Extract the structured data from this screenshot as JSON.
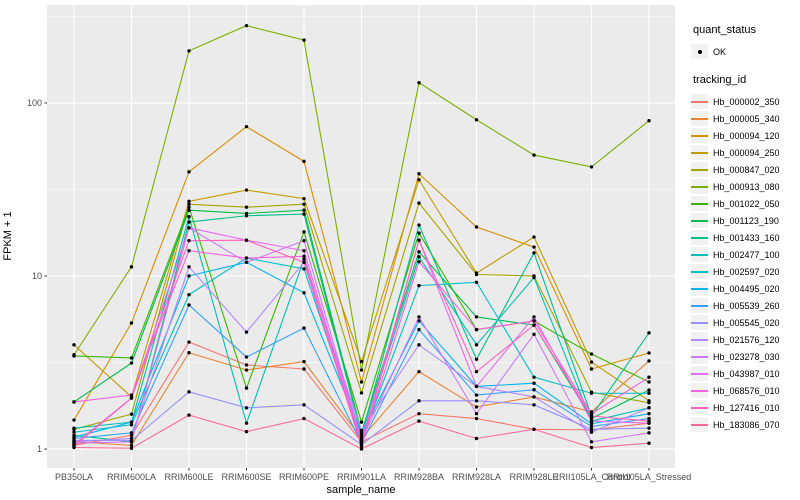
{
  "figure": {
    "x_axis_title": "sample_name",
    "y_axis_title": "FPKM + 1",
    "legend": {
      "quant_status_title": "quant_status",
      "quant_status_items": [
        {
          "label": "OK",
          "marker": "black-point"
        }
      ],
      "tracking_title": "tracking_id"
    },
    "style": {
      "panel_background": "#EBEBEB",
      "grid_color": "#FFFFFF",
      "tick_text_color": "#4D4D4D",
      "point_color": "#000000",
      "legend_key_background": "#F2F2F2"
    }
  },
  "chart_data": {
    "type": "line",
    "title": "",
    "xlabel": "sample_name",
    "ylabel": "FPKM + 1",
    "yscale": "log10",
    "ylim": [
      1,
      350
    ],
    "y_ticks": [
      1,
      10,
      100
    ],
    "y_minor_ticks": [
      3.162,
      31.62,
      316.2
    ],
    "grid": "white major and minor on gray panel",
    "legend_position": "right",
    "marker": "black point at every vertex (quant_status OK)",
    "categories": [
      "PB350LA",
      "RRIM600LA",
      "RRIM600LE",
      "RRIM600SE",
      "RRIM600PE",
      "RRIM901LA",
      "RRIM928BA",
      "RRIM928LA",
      "RRIM928LE",
      "RRII105LA_Control",
      "RRII105LA_Stressed"
    ],
    "series": [
      {
        "name": "Hb_000002_350",
        "color": "#F8766D",
        "values": [
          1.05,
          1.2,
          4.15,
          3.06,
          2.9,
          1.1,
          1.6,
          1.5,
          1.3,
          1.29,
          1.41
        ]
      },
      {
        "name": "Hb_000005_340",
        "color": "#EA8331",
        "values": [
          1.1,
          1.05,
          3.6,
          2.86,
          3.2,
          1.15,
          2.8,
          1.75,
          2.0,
          1.64,
          3.23
        ]
      },
      {
        "name": "Hb_000094_120",
        "color": "#D89000",
        "values": [
          1.47,
          5.35,
          40.0,
          73.0,
          46.0,
          2.44,
          39.0,
          19.2,
          14.7,
          2.9,
          3.59
        ]
      },
      {
        "name": "Hb_000094_250",
        "color": "#C09B00",
        "values": [
          4.0,
          2.0,
          27.0,
          31.4,
          28.0,
          3.2,
          36.0,
          10.4,
          16.8,
          3.18,
          1.9
        ]
      },
      {
        "name": "Hb_000847_020",
        "color": "#A3A500",
        "values": [
          1.3,
          1.59,
          26.0,
          25.0,
          26.0,
          2.11,
          26.4,
          10.2,
          10.0,
          2.13,
          1.85
        ]
      },
      {
        "name": "Hb_000913_080",
        "color": "#7CAE00",
        "values": [
          3.5,
          11.3,
          200.0,
          280.0,
          231.0,
          2.86,
          131.0,
          80.0,
          50.0,
          42.7,
          79.0
        ]
      },
      {
        "name": "Hb_001022_050",
        "color": "#39B600",
        "values": [
          3.45,
          3.36,
          25.0,
          2.25,
          18.0,
          1.43,
          17.7,
          4.9,
          5.5,
          3.54,
          2.44
        ]
      },
      {
        "name": "Hb_001123_190",
        "color": "#00BB4E",
        "values": [
          1.87,
          3.14,
          24.0,
          23.0,
          24.0,
          1.25,
          13.8,
          5.8,
          5.2,
          1.5,
          2.19
        ]
      },
      {
        "name": "Hb_001433_160",
        "color": "#00C087",
        "values": [
          1.2,
          1.1,
          20.5,
          22.3,
          22.8,
          1.2,
          19.7,
          3.3,
          13.6,
          1.55,
          4.69
        ]
      },
      {
        "name": "Hb_002477_100",
        "color": "#00C0B2",
        "values": [
          1.32,
          1.43,
          22.0,
          1.41,
          12.5,
          1.18,
          12.9,
          4.0,
          9.8,
          1.45,
          1.73
        ]
      },
      {
        "name": "Hb_002597_020",
        "color": "#00BFC4",
        "values": [
          1.25,
          1.38,
          7.8,
          12.7,
          11.0,
          1.12,
          8.8,
          9.2,
          2.6,
          2.1,
          2.1
        ]
      },
      {
        "name": "Hb_004495_020",
        "color": "#00B4F0",
        "values": [
          1.17,
          1.43,
          10.0,
          12.0,
          8.0,
          1.22,
          5.5,
          2.3,
          2.4,
          1.4,
          1.6
        ]
      },
      {
        "name": "Hb_005539_260",
        "color": "#35A2FF",
        "values": [
          1.15,
          1.24,
          6.8,
          3.4,
          5.0,
          1.08,
          4.9,
          2.05,
          2.2,
          1.35,
          1.5
        ]
      },
      {
        "name": "Hb_005545_020",
        "color": "#9590FF",
        "values": [
          1.12,
          1.12,
          2.14,
          1.73,
          1.8,
          1.06,
          1.9,
          1.9,
          1.8,
          1.3,
          1.32
        ]
      },
      {
        "name": "Hb_021576_120",
        "color": "#B187FF",
        "values": [
          1.1,
          1.15,
          11.3,
          4.74,
          12.0,
          1.28,
          4.0,
          2.3,
          2.0,
          1.25,
          1.73
        ]
      },
      {
        "name": "Hb_023278_030",
        "color": "#CC79FF",
        "values": [
          1.08,
          1.1,
          19.0,
          12.0,
          16.0,
          1.12,
          5.8,
          1.6,
          4.6,
          1.1,
          1.24
        ]
      },
      {
        "name": "Hb_043987_010",
        "color": "#E76BF3",
        "values": [
          1.06,
          1.97,
          19.0,
          16.1,
          14.0,
          1.1,
          16.1,
          2.3,
          5.8,
          1.45,
          1.41
        ]
      },
      {
        "name": "Hb_068576_010",
        "color": "#F962DE",
        "values": [
          1.87,
          2.05,
          14.0,
          12.7,
          13.0,
          1.05,
          12.1,
          4.9,
          5.5,
          1.6,
          2.6
        ]
      },
      {
        "name": "Hb_127416_010",
        "color": "#FF62BC",
        "values": [
          1.04,
          1.97,
          16.0,
          16.1,
          12.0,
          1.03,
          16.1,
          2.8,
          5.2,
          1.55,
          1.45
        ]
      },
      {
        "name": "Hb_183086_070",
        "color": "#FF6A97",
        "values": [
          1.02,
          1.01,
          1.57,
          1.26,
          1.5,
          1.0,
          1.45,
          1.15,
          1.3,
          1.02,
          1.08
        ]
      }
    ]
  }
}
